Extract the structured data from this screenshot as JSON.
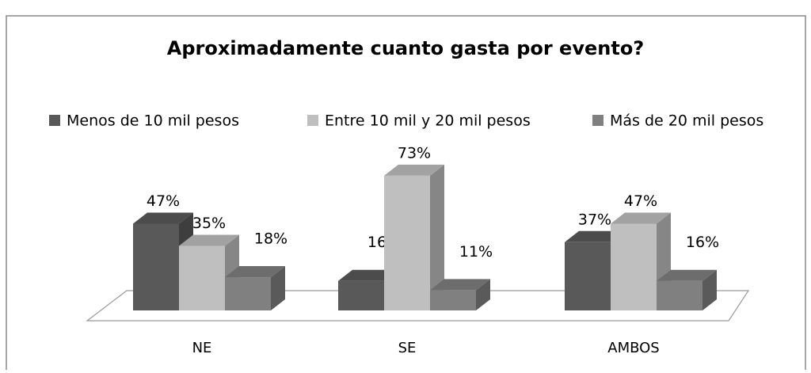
{
  "chart_data": {
    "type": "bar3d",
    "title": "Aproximadamente cuanto gasta por evento?",
    "categories": [
      "NE",
      "SE",
      "AMBOS"
    ],
    "series": [
      {
        "name": "Menos de 10 mil pesos",
        "color": "#595959",
        "values": [
          47,
          16,
          37
        ],
        "value_labels": [
          "47%",
          "16%",
          "37%"
        ]
      },
      {
        "name": "Entre 10 mil y 20 mil pesos",
        "color": "#bfbfbf",
        "values": [
          35,
          73,
          47
        ],
        "value_labels": [
          "35%",
          "73%",
          "47%"
        ]
      },
      {
        "name": "Más de 20 mil pesos",
        "color": "#808080",
        "values": [
          18,
          11,
          16
        ],
        "value_labels": [
          "18%",
          "11%",
          "16%"
        ]
      }
    ],
    "legend": "top"
  }
}
